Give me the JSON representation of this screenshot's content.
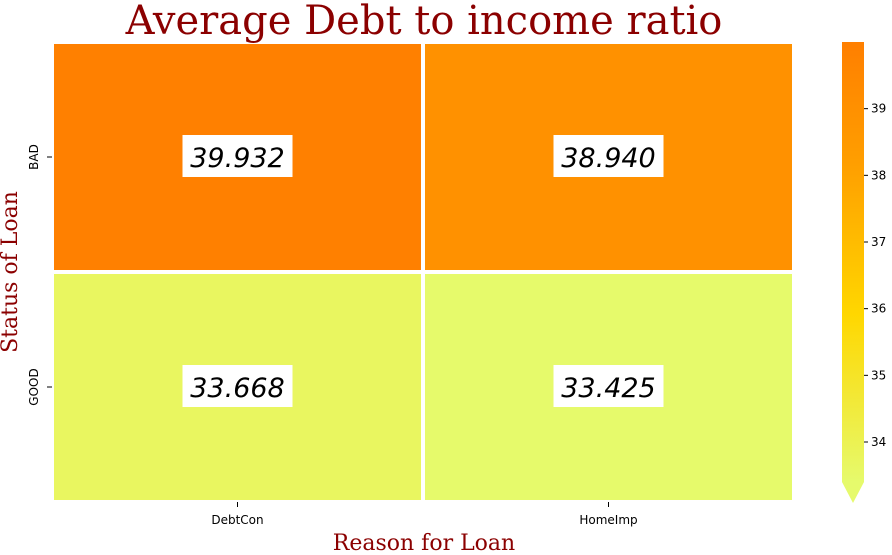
{
  "chart_data": {
    "type": "heatmap",
    "title": "Average Debt to income ratio",
    "xlabel": "Reason for Loan",
    "ylabel": "Status of Loan",
    "x_categories": [
      "DebtCon",
      "HomeImp"
    ],
    "y_categories": [
      "BAD",
      "GOOD"
    ],
    "values": [
      [
        39.932,
        38.94
      ],
      [
        33.668,
        33.425
      ]
    ],
    "annotations": [
      [
        "39.932",
        "38.940"
      ],
      [
        "33.668",
        "33.425"
      ]
    ],
    "colorbar": {
      "range": [
        33.4,
        40.0
      ],
      "ticks": [
        34,
        35,
        36,
        37,
        38,
        39
      ],
      "tick_labels": [
        "34",
        "35",
        "36",
        "37",
        "38",
        "39"
      ],
      "extend": "min"
    },
    "colormap": [
      "#e6fa6c",
      "#ffd700",
      "#ff9f00",
      "#ff7f00"
    ],
    "title_color": "#8b0000",
    "grid": false
  }
}
